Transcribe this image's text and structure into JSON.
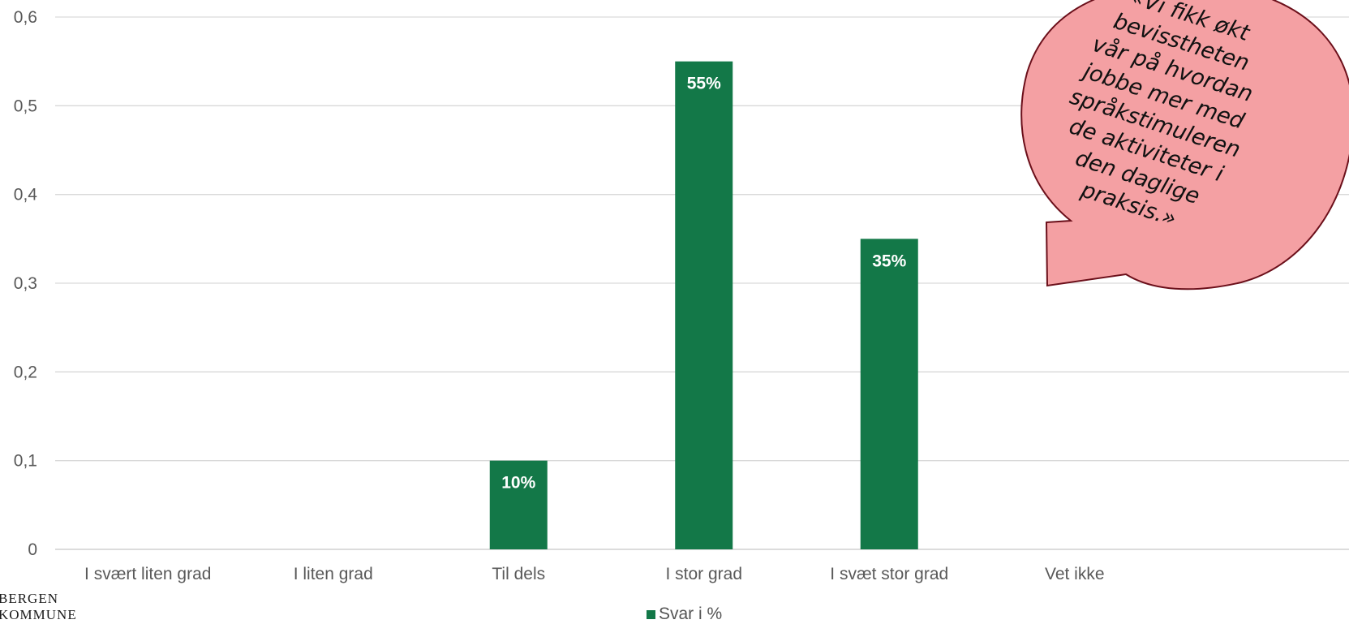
{
  "chart_data": {
    "type": "bar",
    "categories": [
      "I svært liten grad",
      "I liten grad",
      "Til dels",
      "I stor grad",
      "I svæt stor grad",
      "Vet ikke"
    ],
    "series": [
      {
        "name": "Svar i %",
        "values": [
          0,
          0,
          0.1,
          0.55,
          0.35,
          0
        ],
        "data_labels": [
          "",
          "",
          "10%",
          "55%",
          "35%",
          ""
        ]
      }
    ],
    "yticks": [
      "0",
      "0,1",
      "0,2",
      "0,3",
      "0,4",
      "0,5",
      "0,6"
    ],
    "ylim": [
      0,
      0.6
    ],
    "grid": true,
    "legend_position": "bottom",
    "bar_color": "#137848",
    "title": "",
    "xlabel": "",
    "ylabel": ""
  },
  "callout": {
    "lines": [
      "«Vi fikk økt",
      "bevisstheten",
      "vår på hvordan",
      "jobbe mer med",
      "språkstimuleren",
      "de aktiviteter i",
      "den daglige",
      "praksis.»"
    ],
    "fill": "#F4A0A3",
    "stroke": "#6B0F1A"
  },
  "logo": {
    "line1": "BERGEN",
    "line2": "KOMMUNE"
  }
}
